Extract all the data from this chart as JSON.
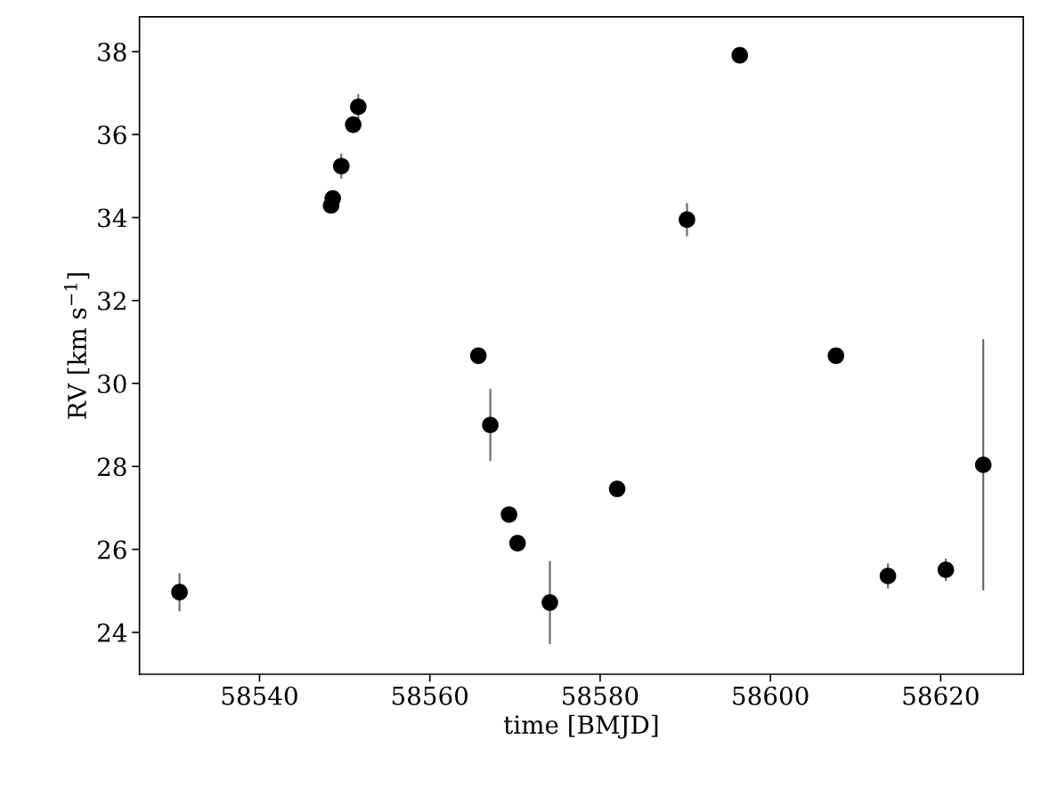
{
  "chart_data": {
    "type": "scatter",
    "xlabel": "time [BMJD]",
    "ylabel": "RV [km s$^{−1}$]",
    "x": [
      58530.6,
      58548.4,
      58548.6,
      58549.6,
      58551.0,
      58551.6,
      58565.7,
      58567.1,
      58569.3,
      58570.3,
      58574.1,
      58582.0,
      58590.2,
      58596.4,
      58607.7,
      58613.8,
      58620.6,
      58625.0
    ],
    "series": [
      {
        "color": "#000000",
        "values": [
          24.97,
          34.29,
          34.46,
          35.24,
          36.24,
          36.67,
          30.67,
          29.0,
          26.84,
          26.15,
          24.72,
          27.46,
          33.95,
          37.91,
          30.67,
          25.36,
          25.51,
          28.04
        ],
        "errors": [
          0.46,
          null,
          null,
          0.3,
          0.2,
          0.3,
          null,
          0.87,
          null,
          null,
          1.0,
          null,
          0.4,
          null,
          null,
          0.3,
          0.27,
          3.03
        ]
      }
    ],
    "xlim": [
      58525.9,
      58629.7
    ],
    "ylim": [
      22.99,
      38.84
    ],
    "xticks": [
      58540,
      58560,
      58580,
      58600,
      58620
    ],
    "yticks": [
      24,
      26,
      28,
      30,
      32,
      34,
      36,
      38
    ],
    "marker": "circle",
    "grid": false
  }
}
